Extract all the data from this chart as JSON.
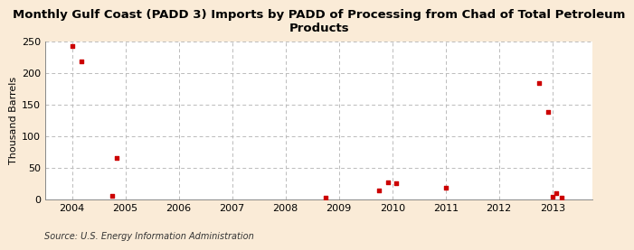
{
  "title": "Monthly Gulf Coast (PADD 3) Imports by PADD of Processing from Chad of Total Petroleum\nProducts",
  "ylabel": "Thousand Barrels",
  "source": "Source: U.S. Energy Information Administration",
  "background_color": "#faebd7",
  "plot_background_color": "#ffffff",
  "grid_color": "#bbbbbb",
  "marker_color": "#cc0000",
  "xlim": [
    2003.5,
    2013.75
  ],
  "ylim": [
    0,
    250
  ],
  "yticks": [
    0,
    50,
    100,
    150,
    200,
    250
  ],
  "xticks": [
    2004,
    2005,
    2006,
    2007,
    2008,
    2009,
    2010,
    2011,
    2012,
    2013
  ],
  "data_points": [
    [
      2004.0,
      243
    ],
    [
      2004.17,
      219
    ],
    [
      2004.75,
      5
    ],
    [
      2004.83,
      65
    ],
    [
      2008.75,
      2
    ],
    [
      2009.75,
      14
    ],
    [
      2009.92,
      26
    ],
    [
      2010.08,
      25
    ],
    [
      2011.0,
      18
    ],
    [
      2012.75,
      184
    ],
    [
      2012.92,
      138
    ],
    [
      2013.0,
      4
    ],
    [
      2013.08,
      10
    ],
    [
      2013.17,
      2
    ]
  ],
  "title_fontsize": 9.5,
  "tick_fontsize": 8,
  "ylabel_fontsize": 8,
  "source_fontsize": 7
}
